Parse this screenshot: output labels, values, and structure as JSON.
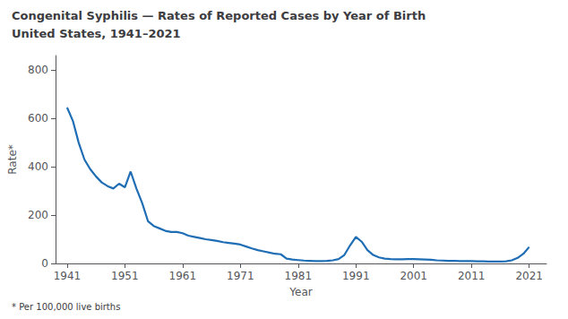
{
  "chart_data": {
    "type": "line",
    "title": "Congenital Syphilis — Rates of Reported Cases by Year of Birth",
    "subtitle": "United States, 1941–2021",
    "xlabel": "Year",
    "ylabel": "Rate*",
    "annotations": [
      "* Per 100,000 live births"
    ],
    "color": "#1f6eb5",
    "xlim": [
      1939,
      2024
    ],
    "ylim": [
      0,
      860
    ],
    "xticks": [
      1941,
      1951,
      1961,
      1971,
      1981,
      1991,
      2001,
      2011,
      2021
    ],
    "yticks": [
      0,
      200,
      400,
      600,
      800
    ],
    "grid": false,
    "x": [
      1941,
      1942,
      1943,
      1944,
      1945,
      1946,
      1947,
      1948,
      1949,
      1950,
      1951,
      1952,
      1953,
      1954,
      1955,
      1956,
      1957,
      1958,
      1959,
      1960,
      1961,
      1962,
      1963,
      1964,
      1965,
      1966,
      1967,
      1968,
      1969,
      1970,
      1971,
      1972,
      1973,
      1974,
      1975,
      1976,
      1977,
      1978,
      1979,
      1980,
      1981,
      1982,
      1983,
      1984,
      1985,
      1986,
      1987,
      1988,
      1989,
      1990,
      1991,
      1992,
      1993,
      1994,
      1995,
      1996,
      1997,
      1998,
      1999,
      2000,
      2001,
      2002,
      2003,
      2004,
      2005,
      2006,
      2007,
      2008,
      2009,
      2010,
      2011,
      2012,
      2013,
      2014,
      2015,
      2016,
      2017,
      2018,
      2019,
      2020,
      2021
    ],
    "values": [
      645,
      590,
      500,
      430,
      390,
      360,
      335,
      320,
      310,
      330,
      315,
      380,
      310,
      250,
      175,
      155,
      145,
      135,
      130,
      130,
      125,
      115,
      110,
      105,
      100,
      97,
      93,
      88,
      85,
      82,
      78,
      70,
      62,
      55,
      50,
      45,
      40,
      38,
      20,
      16,
      14,
      12,
      11,
      10,
      10,
      11,
      13,
      18,
      35,
      75,
      110,
      90,
      55,
      35,
      25,
      20,
      18,
      17,
      17,
      18,
      18,
      17,
      16,
      15,
      13,
      12,
      11,
      11,
      10,
      10,
      10,
      9,
      9,
      8,
      8,
      8,
      9,
      13,
      23,
      40,
      68
    ]
  }
}
